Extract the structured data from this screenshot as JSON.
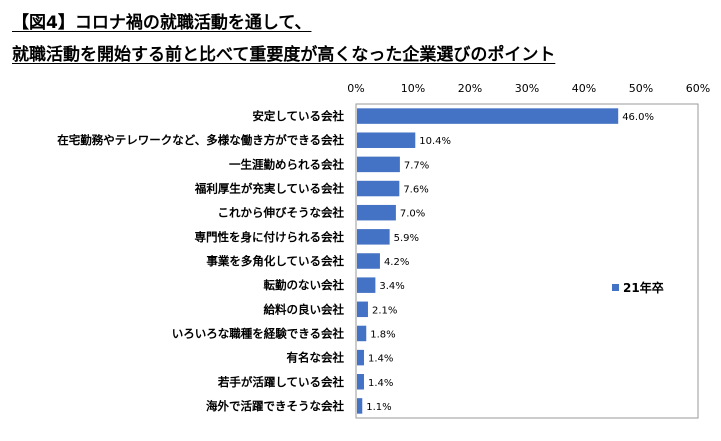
{
  "title": {
    "line1": "【図4】コロナ禍の就職活動を通して、",
    "line2": "就職活動を開始する前と比べて重要度が高くなった企業選びのポイント"
  },
  "colors": {
    "bar": "#4472C4",
    "axis": "#999999",
    "plot_border": "#999999"
  },
  "chart_data": {
    "type": "bar",
    "orientation": "horizontal",
    "categories": [
      "安定している会社",
      "在宅勤務やテレワークなど、多様な働き方ができる会社",
      "一生涯勤められる会社",
      "福利厚生が充実している会社",
      "これから伸びそうな会社",
      "専門性を身に付けられる会社",
      "事業を多角化している会社",
      "転勤のない会社",
      "給料の良い会社",
      "いろいろな職種を経験できる会社",
      "有名な会社",
      "若手が活躍している会社",
      "海外で活躍できそうな会社"
    ],
    "series": [
      {
        "name": "21年卒",
        "values": [
          46.0,
          10.4,
          7.7,
          7.6,
          7.0,
          5.9,
          4.2,
          3.4,
          2.1,
          1.8,
          1.4,
          1.4,
          1.1
        ],
        "labels": [
          "46.0%",
          "10.4%",
          "7.7%",
          "7.6%",
          "7.0%",
          "5.9%",
          "4.2%",
          "3.4%",
          "2.1%",
          "1.8%",
          "1.4%",
          "1.4%",
          "1.1%"
        ]
      }
    ],
    "xlim": [
      0,
      60
    ],
    "xticks": [
      0,
      10,
      20,
      30,
      40,
      50,
      60
    ],
    "xtick_labels": [
      "0%",
      "10%",
      "20%",
      "30%",
      "40%",
      "50%",
      "60%"
    ],
    "x_axis_position": "top",
    "grid": false,
    "legend_position": "right"
  }
}
